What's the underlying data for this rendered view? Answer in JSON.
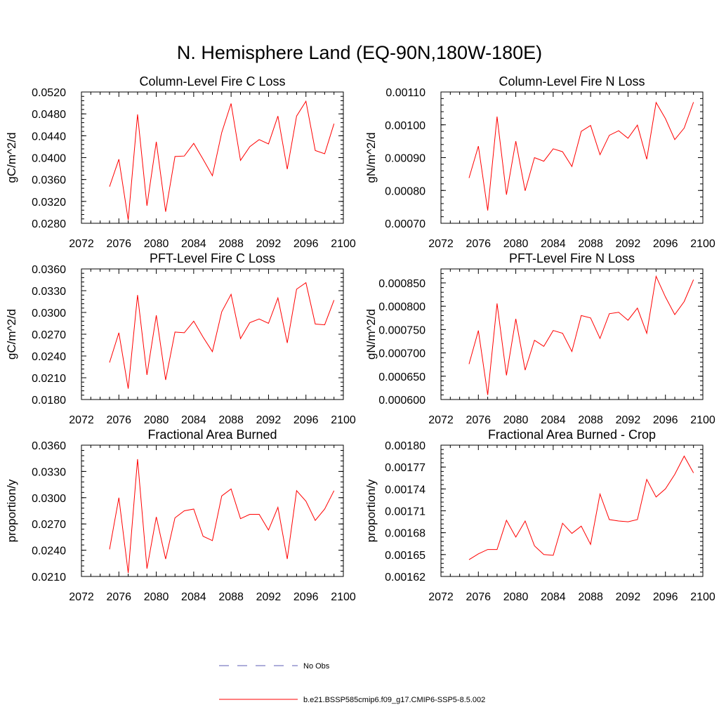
{
  "main_title": "N. Hemisphere Land (EQ-90N,180W-180E)",
  "colors": {
    "model": "#ff0000",
    "obs": "#5b5bb5",
    "frame": "#000000"
  },
  "legend": [
    {
      "label": "No Obs",
      "style": "dashed",
      "color": "#5b5bb5"
    },
    {
      "label": "b.e21.BSSP585cmip6.f09_g17.CMIP6-SSP5-8.5.002",
      "style": "solid",
      "color": "#ff0000"
    }
  ],
  "chart_data": [
    {
      "type": "line",
      "title": "Column-Level Fire C Loss",
      "xlabel": "",
      "ylabel": "gC/m^2/d",
      "xlim": [
        2072,
        2100
      ],
      "ylim": [
        0.028,
        0.052
      ],
      "x_ticks": [
        "2072",
        "2076",
        "2080",
        "2084",
        "2088",
        "2092",
        "2096",
        "2100"
      ],
      "y_ticks": [
        "0.0280",
        "0.0320",
        "0.0360",
        "0.0400",
        "0.0440",
        "0.0480",
        "0.0520"
      ],
      "x": [
        2075,
        2076,
        2077,
        2078,
        2079,
        2080,
        2081,
        2082,
        2083,
        2084,
        2085,
        2086,
        2087,
        2088,
        2089,
        2090,
        2091,
        2092,
        2093,
        2094,
        2095,
        2096,
        2097,
        2098,
        2099
      ],
      "series": [
        {
          "name": "b.e21.BSSP585cmip6.f09_g17.CMIP6-SSP5-8.5.002",
          "values": [
            0.0347,
            0.0397,
            0.0286,
            0.0479,
            0.0312,
            0.0429,
            0.0301,
            0.0402,
            0.0403,
            0.0426,
            0.0397,
            0.0367,
            0.0446,
            0.0499,
            0.0395,
            0.042,
            0.0433,
            0.0425,
            0.0476,
            0.0379,
            0.0476,
            0.0503,
            0.0413,
            0.0407,
            0.0462
          ]
        }
      ]
    },
    {
      "type": "line",
      "title": "Column-Level Fire N Loss",
      "xlabel": "",
      "ylabel": "gN/m^2/d",
      "xlim": [
        2072,
        2100
      ],
      "ylim": [
        0.0007,
        0.0011
      ],
      "x_ticks": [
        "2072",
        "2076",
        "2080",
        "2084",
        "2088",
        "2092",
        "2096",
        "2100"
      ],
      "y_ticks": [
        "0.00070",
        "0.00080",
        "0.00090",
        "0.00100",
        "0.00110"
      ],
      "x": [
        2075,
        2076,
        2077,
        2078,
        2079,
        2080,
        2081,
        2082,
        2083,
        2084,
        2085,
        2086,
        2087,
        2088,
        2089,
        2090,
        2091,
        2092,
        2093,
        2094,
        2095,
        2096,
        2097,
        2098,
        2099
      ],
      "series": [
        {
          "name": "b.e21.BSSP585cmip6.f09_g17.CMIP6-SSP5-8.5.002",
          "values": [
            0.000838,
            0.000935,
            0.000739,
            0.001025,
            0.000787,
            0.00095,
            0.000799,
            0.0009,
            0.000889,
            0.000927,
            0.000918,
            0.000873,
            0.00098,
            0.000998,
            0.000909,
            0.000968,
            0.000982,
            0.000959,
            0.000999,
            0.000895,
            0.001068,
            0.001019,
            0.000955,
            0.00099,
            0.001069
          ]
        }
      ]
    },
    {
      "type": "line",
      "title": "PFT-Level Fire C Loss",
      "xlabel": "",
      "ylabel": "gC/m^2/d",
      "xlim": [
        2072,
        2100
      ],
      "ylim": [
        0.018,
        0.036
      ],
      "x_ticks": [
        "2072",
        "2076",
        "2080",
        "2084",
        "2088",
        "2092",
        "2096",
        "2100"
      ],
      "y_ticks": [
        "0.0180",
        "0.0210",
        "0.0240",
        "0.0270",
        "0.0300",
        "0.0330",
        "0.0360"
      ],
      "x": [
        2075,
        2076,
        2077,
        2078,
        2079,
        2080,
        2081,
        2082,
        2083,
        2084,
        2085,
        2086,
        2087,
        2088,
        2089,
        2090,
        2091,
        2092,
        2093,
        2094,
        2095,
        2096,
        2097,
        2098,
        2099
      ],
      "series": [
        {
          "name": "b.e21.BSSP585cmip6.f09_g17.CMIP6-SSP5-8.5.002",
          "values": [
            0.0231,
            0.0272,
            0.0195,
            0.0324,
            0.0214,
            0.0296,
            0.0207,
            0.0273,
            0.0272,
            0.0288,
            0.0266,
            0.0246,
            0.0301,
            0.0325,
            0.0264,
            0.0286,
            0.0291,
            0.0285,
            0.032,
            0.0258,
            0.0332,
            0.0341,
            0.0284,
            0.0283,
            0.0317
          ]
        }
      ]
    },
    {
      "type": "line",
      "title": "PFT-Level Fire N Loss",
      "xlabel": "",
      "ylabel": "gN/m^2/d",
      "xlim": [
        2072,
        2100
      ],
      "ylim": [
        0.0006,
        0.00088
      ],
      "x_ticks": [
        "2072",
        "2076",
        "2080",
        "2084",
        "2088",
        "2092",
        "2096",
        "2100"
      ],
      "y_ticks": [
        "0.000600",
        "0.000650",
        "0.000700",
        "0.000750",
        "0.000800",
        "0.000850"
      ],
      "x": [
        2075,
        2076,
        2077,
        2078,
        2079,
        2080,
        2081,
        2082,
        2083,
        2084,
        2085,
        2086,
        2087,
        2088,
        2089,
        2090,
        2091,
        2092,
        2093,
        2094,
        2095,
        2096,
        2097,
        2098,
        2099
      ],
      "series": [
        {
          "name": "b.e21.BSSP585cmip6.f09_g17.CMIP6-SSP5-8.5.002",
          "values": [
            0.000676,
            0.000748,
            0.00061,
            0.000806,
            0.000652,
            0.000773,
            0.000663,
            0.000727,
            0.000714,
            0.000748,
            0.000742,
            0.000703,
            0.00078,
            0.000775,
            0.000731,
            0.000784,
            0.000787,
            0.00077,
            0.000796,
            0.000742,
            0.000864,
            0.00082,
            0.000782,
            0.00081,
            0.000857
          ]
        }
      ]
    },
    {
      "type": "line",
      "title": "Fractional Area Burned",
      "xlabel": "",
      "ylabel": "proportion/y",
      "xlim": [
        2072,
        2100
      ],
      "ylim": [
        0.021,
        0.036
      ],
      "x_ticks": [
        "2072",
        "2076",
        "2080",
        "2084",
        "2088",
        "2092",
        "2096",
        "2100"
      ],
      "y_ticks": [
        "0.0210",
        "0.0240",
        "0.0270",
        "0.0300",
        "0.0330",
        "0.0360"
      ],
      "x": [
        2075,
        2076,
        2077,
        2078,
        2079,
        2080,
        2081,
        2082,
        2083,
        2084,
        2085,
        2086,
        2087,
        2088,
        2089,
        2090,
        2091,
        2092,
        2093,
        2094,
        2095,
        2096,
        2097,
        2098,
        2099
      ],
      "series": [
        {
          "name": "b.e21.BSSP585cmip6.f09_g17.CMIP6-SSP5-8.5.002",
          "values": [
            0.0241,
            0.03,
            0.0214,
            0.0344,
            0.0219,
            0.0278,
            0.023,
            0.0277,
            0.0285,
            0.0287,
            0.0256,
            0.0251,
            0.0302,
            0.031,
            0.0276,
            0.0281,
            0.0281,
            0.0263,
            0.0289,
            0.023,
            0.0308,
            0.0296,
            0.0274,
            0.0287,
            0.0308
          ]
        }
      ]
    },
    {
      "type": "line",
      "title": "Fractional Area Burned - Crop",
      "xlabel": "",
      "ylabel": "proportion/y",
      "xlim": [
        2072,
        2100
      ],
      "ylim": [
        0.00162,
        0.0018
      ],
      "x_ticks": [
        "2072",
        "2076",
        "2080",
        "2084",
        "2088",
        "2092",
        "2096",
        "2100"
      ],
      "y_ticks": [
        "0.00162",
        "0.00165",
        "0.00168",
        "0.00171",
        "0.00174",
        "0.00177",
        "0.00180"
      ],
      "x": [
        2075,
        2076,
        2077,
        2078,
        2079,
        2080,
        2081,
        2082,
        2083,
        2084,
        2085,
        2086,
        2087,
        2088,
        2089,
        2090,
        2091,
        2092,
        2093,
        2094,
        2095,
        2096,
        2097,
        2098,
        2099
      ],
      "series": [
        {
          "name": "b.e21.BSSP585cmip6.f09_g17.CMIP6-SSP5-8.5.002",
          "values": [
            0.001643,
            0.001651,
            0.001657,
            0.001657,
            0.001697,
            0.001674,
            0.001696,
            0.001662,
            0.00165,
            0.001649,
            0.001693,
            0.001679,
            0.001689,
            0.001664,
            0.001733,
            0.001698,
            0.001696,
            0.001695,
            0.001698,
            0.001753,
            0.001729,
            0.00174,
            0.00176,
            0.001785,
            0.001762
          ]
        }
      ]
    }
  ]
}
